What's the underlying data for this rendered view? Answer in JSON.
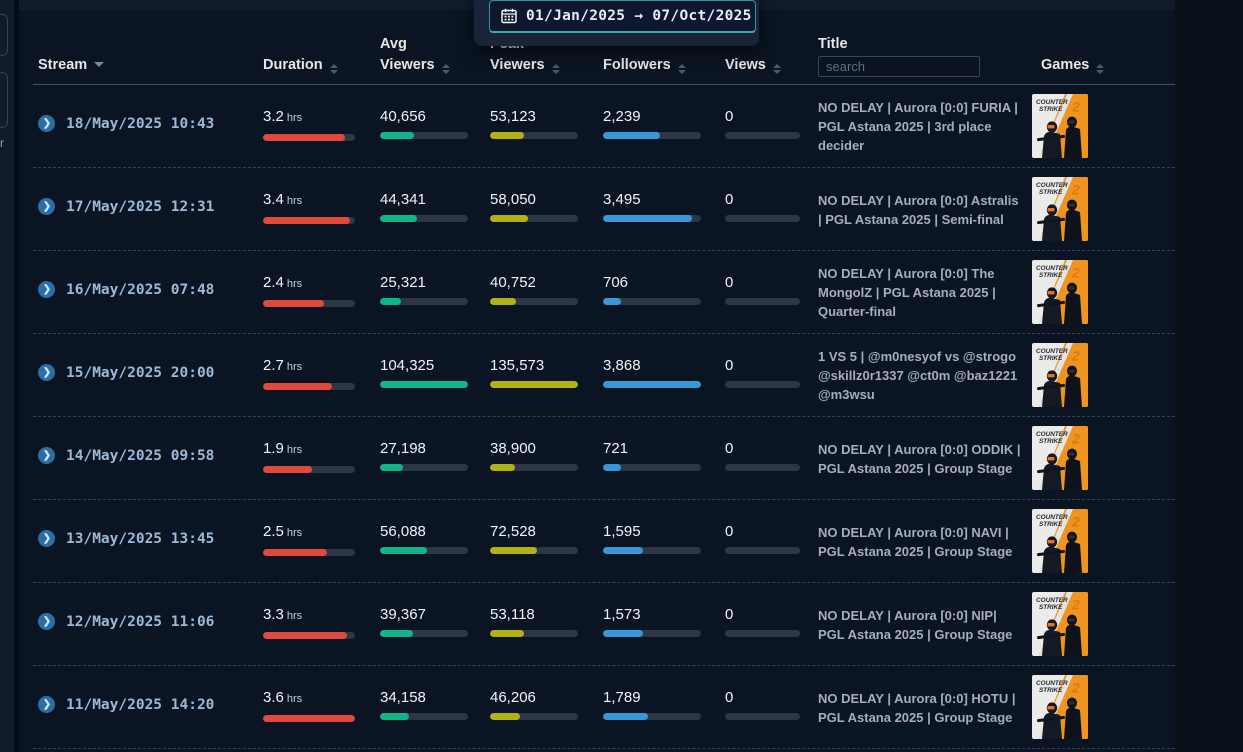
{
  "date_picker": {
    "start_date": "01/Jan/2025",
    "arrow": "→",
    "end_date": "07/Oct/2025"
  },
  "left_panel": {
    "fragment_label": "r"
  },
  "table": {
    "columns": {
      "stream": "Stream",
      "duration": "Duration",
      "avg_viewers": "Avg Viewers",
      "peak_viewers": "Peak Viewers",
      "followers": "Followers",
      "views": "Views",
      "title": "Title",
      "games": "Games"
    },
    "sorted_by": "Stream",
    "sort_direction": "desc",
    "title_search_placeholder": "search",
    "duration_unit": "hrs",
    "rows": [
      {
        "datetime": "18/May/2025 10:43",
        "duration_hrs": "3.2",
        "avg_viewers": "40,656",
        "peak_viewers": "53,123",
        "followers": "2,239",
        "views": "0",
        "title": "NO DELAY | Aurora [0:0] FURIA | PGL Astana 2025 | 3rd place decider",
        "game": "Counter-Strike 2"
      },
      {
        "datetime": "17/May/2025 12:31",
        "duration_hrs": "3.4",
        "avg_viewers": "44,341",
        "peak_viewers": "58,050",
        "followers": "3,495",
        "views": "0",
        "title": "NO DELAY | Aurora [0:0] Astralis | PGL Astana 2025 | Semi-final",
        "game": "Counter-Strike 2"
      },
      {
        "datetime": "16/May/2025 07:48",
        "duration_hrs": "2.4",
        "avg_viewers": "25,321",
        "peak_viewers": "40,752",
        "followers": "706",
        "views": "0",
        "title": "NO DELAY | Aurora [0:0] The MongolZ | PGL Astana 2025 | Quarter-final",
        "game": "Counter-Strike 2"
      },
      {
        "datetime": "15/May/2025 20:00",
        "duration_hrs": "2.7",
        "avg_viewers": "104,325",
        "peak_viewers": "135,573",
        "followers": "3,868",
        "views": "0",
        "title": "1 VS 5 | @m0nesyof vs @strogo @skillz0r1337 @ct0m @baz1221 @m3wsu",
        "game": "Counter-Strike 2"
      },
      {
        "datetime": "14/May/2025 09:58",
        "duration_hrs": "1.9",
        "avg_viewers": "27,198",
        "peak_viewers": "38,900",
        "followers": "721",
        "views": "0",
        "title": "NO DELAY | Aurora [0:0] ODDIK | PGL Astana 2025 | Group Stage",
        "game": "Counter-Strike 2"
      },
      {
        "datetime": "13/May/2025 13:45",
        "duration_hrs": "2.5",
        "avg_viewers": "56,088",
        "peak_viewers": "72,528",
        "followers": "1,595",
        "views": "0",
        "title": "NO DELAY | Aurora [0:0] NAVI | PGL Astana 2025 | Group Stage",
        "game": "Counter-Strike 2"
      },
      {
        "datetime": "12/May/2025 11:06",
        "duration_hrs": "3.3",
        "avg_viewers": "39,367",
        "peak_viewers": "53,118",
        "followers": "1,573",
        "views": "0",
        "title": "NO DELAY | Aurora [0:0] NIP| PGL Astana 2025 | Group Stage",
        "game": "Counter-Strike 2"
      },
      {
        "datetime": "11/May/2025 14:20",
        "duration_hrs": "3.6",
        "avg_viewers": "34,158",
        "peak_viewers": "46,206",
        "followers": "1,789",
        "views": "0",
        "title": "NO DELAY | Aurora [0:0] HOTU | PGL Astana 2025 | Group Stage",
        "game": "Counter-Strike 2"
      }
    ]
  },
  "game_cover": {
    "line1": "COUNTER",
    "line2": "STRIKE",
    "number": "2"
  },
  "colors": {
    "accent_teal": "#2fa99e",
    "bar_red": "#e2493d",
    "bar_green": "#12b48a",
    "bar_yellow": "#b3b118",
    "bar_blue": "#3897d9",
    "bar_track": "#2c3644",
    "page_bg": "#081019",
    "panel_bg": "#0a1423",
    "date_text": "#9db9d7"
  }
}
